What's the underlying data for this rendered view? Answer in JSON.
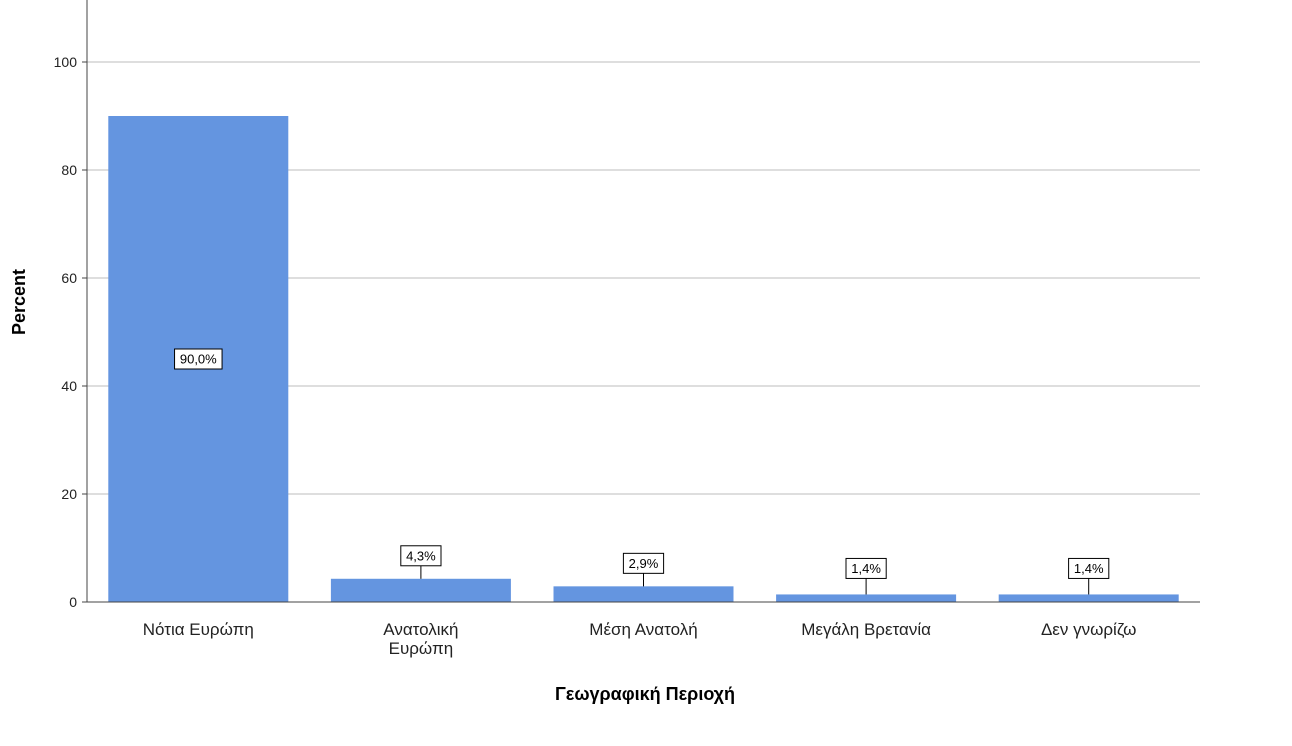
{
  "chart_data": {
    "type": "bar",
    "categories": [
      "Νότια Ευρώπη",
      "Ανατολική Ευρώπη",
      "Μέση Ανατολή",
      "Μεγάλη Βρετανία",
      "Δεν γνωρίζω"
    ],
    "category_label_lines": [
      [
        "Νότια Ευρώπη"
      ],
      [
        "Ανατολική",
        "Ευρώπη"
      ],
      [
        "Μέση Ανατολή"
      ],
      [
        "Μεγάλη Βρετανία"
      ],
      [
        "Δεν γνωρίζω"
      ]
    ],
    "values": [
      90.0,
      4.3,
      2.9,
      1.4,
      1.4
    ],
    "data_labels": [
      "90,0%",
      "4,3%",
      "2,9%",
      "1,4%",
      "1,4%"
    ],
    "title": "",
    "xlabel": "Γεωγραφική Περιοχή",
    "ylabel": "Percent",
    "ylim": [
      0,
      110
    ],
    "yticks": [
      0,
      20,
      40,
      60,
      80,
      100
    ],
    "grid": true,
    "bar_color": "#6495e0"
  }
}
